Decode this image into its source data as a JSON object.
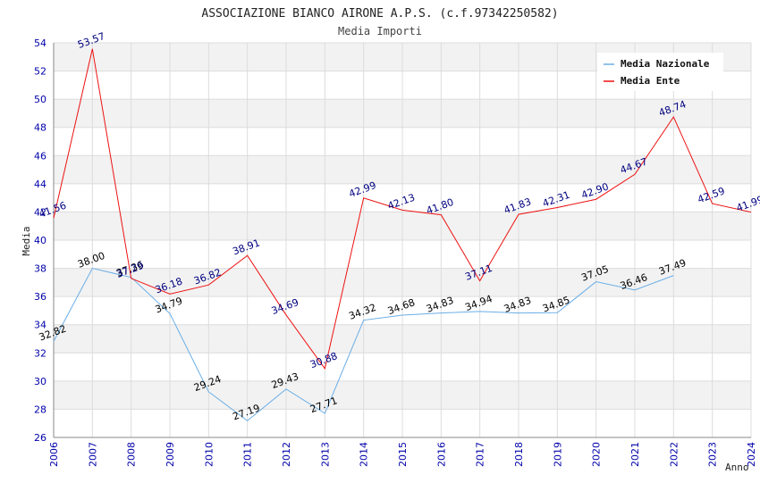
{
  "chart_data": {
    "type": "line",
    "title": "ASSOCIAZIONE BIANCO AIRONE A.P.S. (c.f.97342250582)",
    "subtitle": "Media Importi",
    "xlabel": "Anno",
    "ylabel": "Media",
    "ylim": [
      26,
      54
    ],
    "yticks": [
      26,
      28,
      30,
      32,
      34,
      36,
      38,
      40,
      42,
      44,
      46,
      48,
      50,
      52,
      54
    ],
    "categories": [
      "2006",
      "2007",
      "2008",
      "2009",
      "2010",
      "2011",
      "2012",
      "2013",
      "2014",
      "2015",
      "2016",
      "2017",
      "2018",
      "2019",
      "2020",
      "2021",
      "2022",
      "2023",
      "2024"
    ],
    "grid": true,
    "legend_position": "top-right",
    "series": [
      {
        "name": "Media Nazionale",
        "color": "#6aaee6",
        "label_color": "#000000",
        "values": [
          32.82,
          38.0,
          37.36,
          34.79,
          29.24,
          27.19,
          29.43,
          27.71,
          34.32,
          34.68,
          34.83,
          34.94,
          34.83,
          34.85,
          37.05,
          36.46,
          37.49,
          null,
          null
        ],
        "labels": [
          "32.82",
          "38.00",
          "37.36",
          "34.79",
          "29.24",
          "27.19",
          "29.43",
          "27.71",
          "34.32",
          "34.68",
          "34.83",
          "34.94",
          "34.83",
          "34.85",
          "37.05",
          "36.46",
          "37.49",
          "",
          ""
        ]
      },
      {
        "name": "Media Ente",
        "color": "#ee1111",
        "label_color": "#000080",
        "values": [
          41.56,
          53.57,
          37.29,
          36.18,
          36.82,
          38.91,
          34.69,
          30.88,
          42.99,
          42.13,
          41.8,
          37.11,
          41.83,
          42.31,
          42.9,
          44.67,
          48.74,
          42.59,
          41.99
        ],
        "labels": [
          "41.56",
          "53.57",
          "37.29",
          "36.18",
          "36.82",
          "38.91",
          "34.69",
          "30.88",
          "42.99",
          "42.13",
          "41.80",
          "37.11",
          "41.83",
          "42.31",
          "42.90",
          "44.67",
          "48.74",
          "42.59",
          "41.99"
        ]
      }
    ]
  }
}
